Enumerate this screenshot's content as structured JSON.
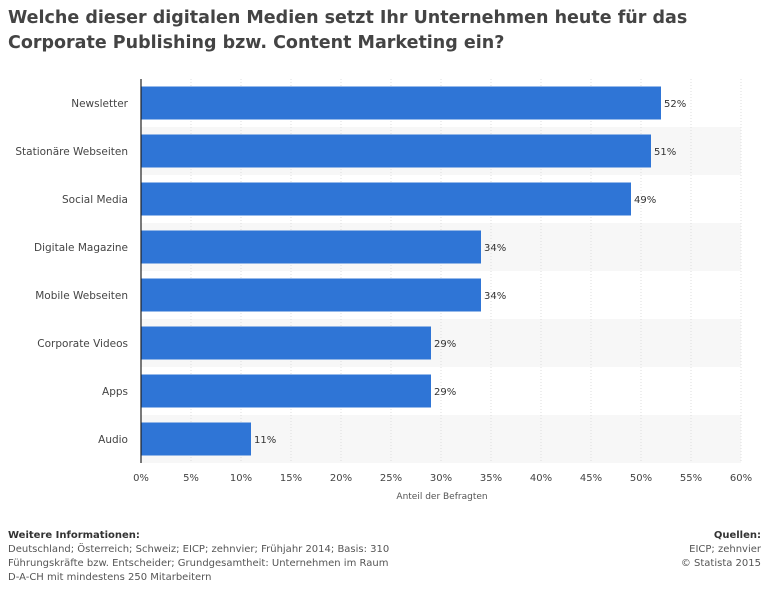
{
  "title": "Welche dieser digitalen Medien setzt Ihr Unternehmen heute für das Corporate Publishing bzw. Content Marketing ein?",
  "chart_data": {
    "type": "bar",
    "orientation": "horizontal",
    "categories": [
      "Newsletter",
      "Stationäre Webseiten",
      "Social Media",
      "Digitale Magazine",
      "Mobile Webseiten",
      "Corporate Videos",
      "Apps",
      "Audio"
    ],
    "values": [
      52,
      51,
      49,
      34,
      34,
      29,
      29,
      11
    ],
    "value_labels": [
      "52%",
      "51%",
      "49%",
      "34%",
      "34%",
      "29%",
      "29%",
      "11%"
    ],
    "xlabel": "Anteil der Befragten",
    "ylabel": "",
    "xlim": [
      0,
      60
    ],
    "ticks": [
      0,
      5,
      10,
      15,
      20,
      25,
      30,
      35,
      40,
      45,
      50,
      55,
      60
    ],
    "tick_labels": [
      "0%",
      "5%",
      "10%",
      "15%",
      "20%",
      "25%",
      "30%",
      "35%",
      "40%",
      "45%",
      "50%",
      "55%",
      "60%"
    ],
    "bar_color": "#2f75d6",
    "grid": true
  },
  "footer": {
    "info_heading": "Weitere Informationen:",
    "info_text": "Deutschland; Österreich; Schweiz; EICP; zehnvier; Frühjahr 2014; Basis: 310 Führungskräfte bzw. Entscheider; Grundgesamtheit: Unternehmen im Raum D-A-CH mit mindestens 250 Mitarbeitern",
    "sources_heading": "Quellen:",
    "sources_text": "EICP; zehnvier",
    "copyright": "© Statista 2015"
  }
}
